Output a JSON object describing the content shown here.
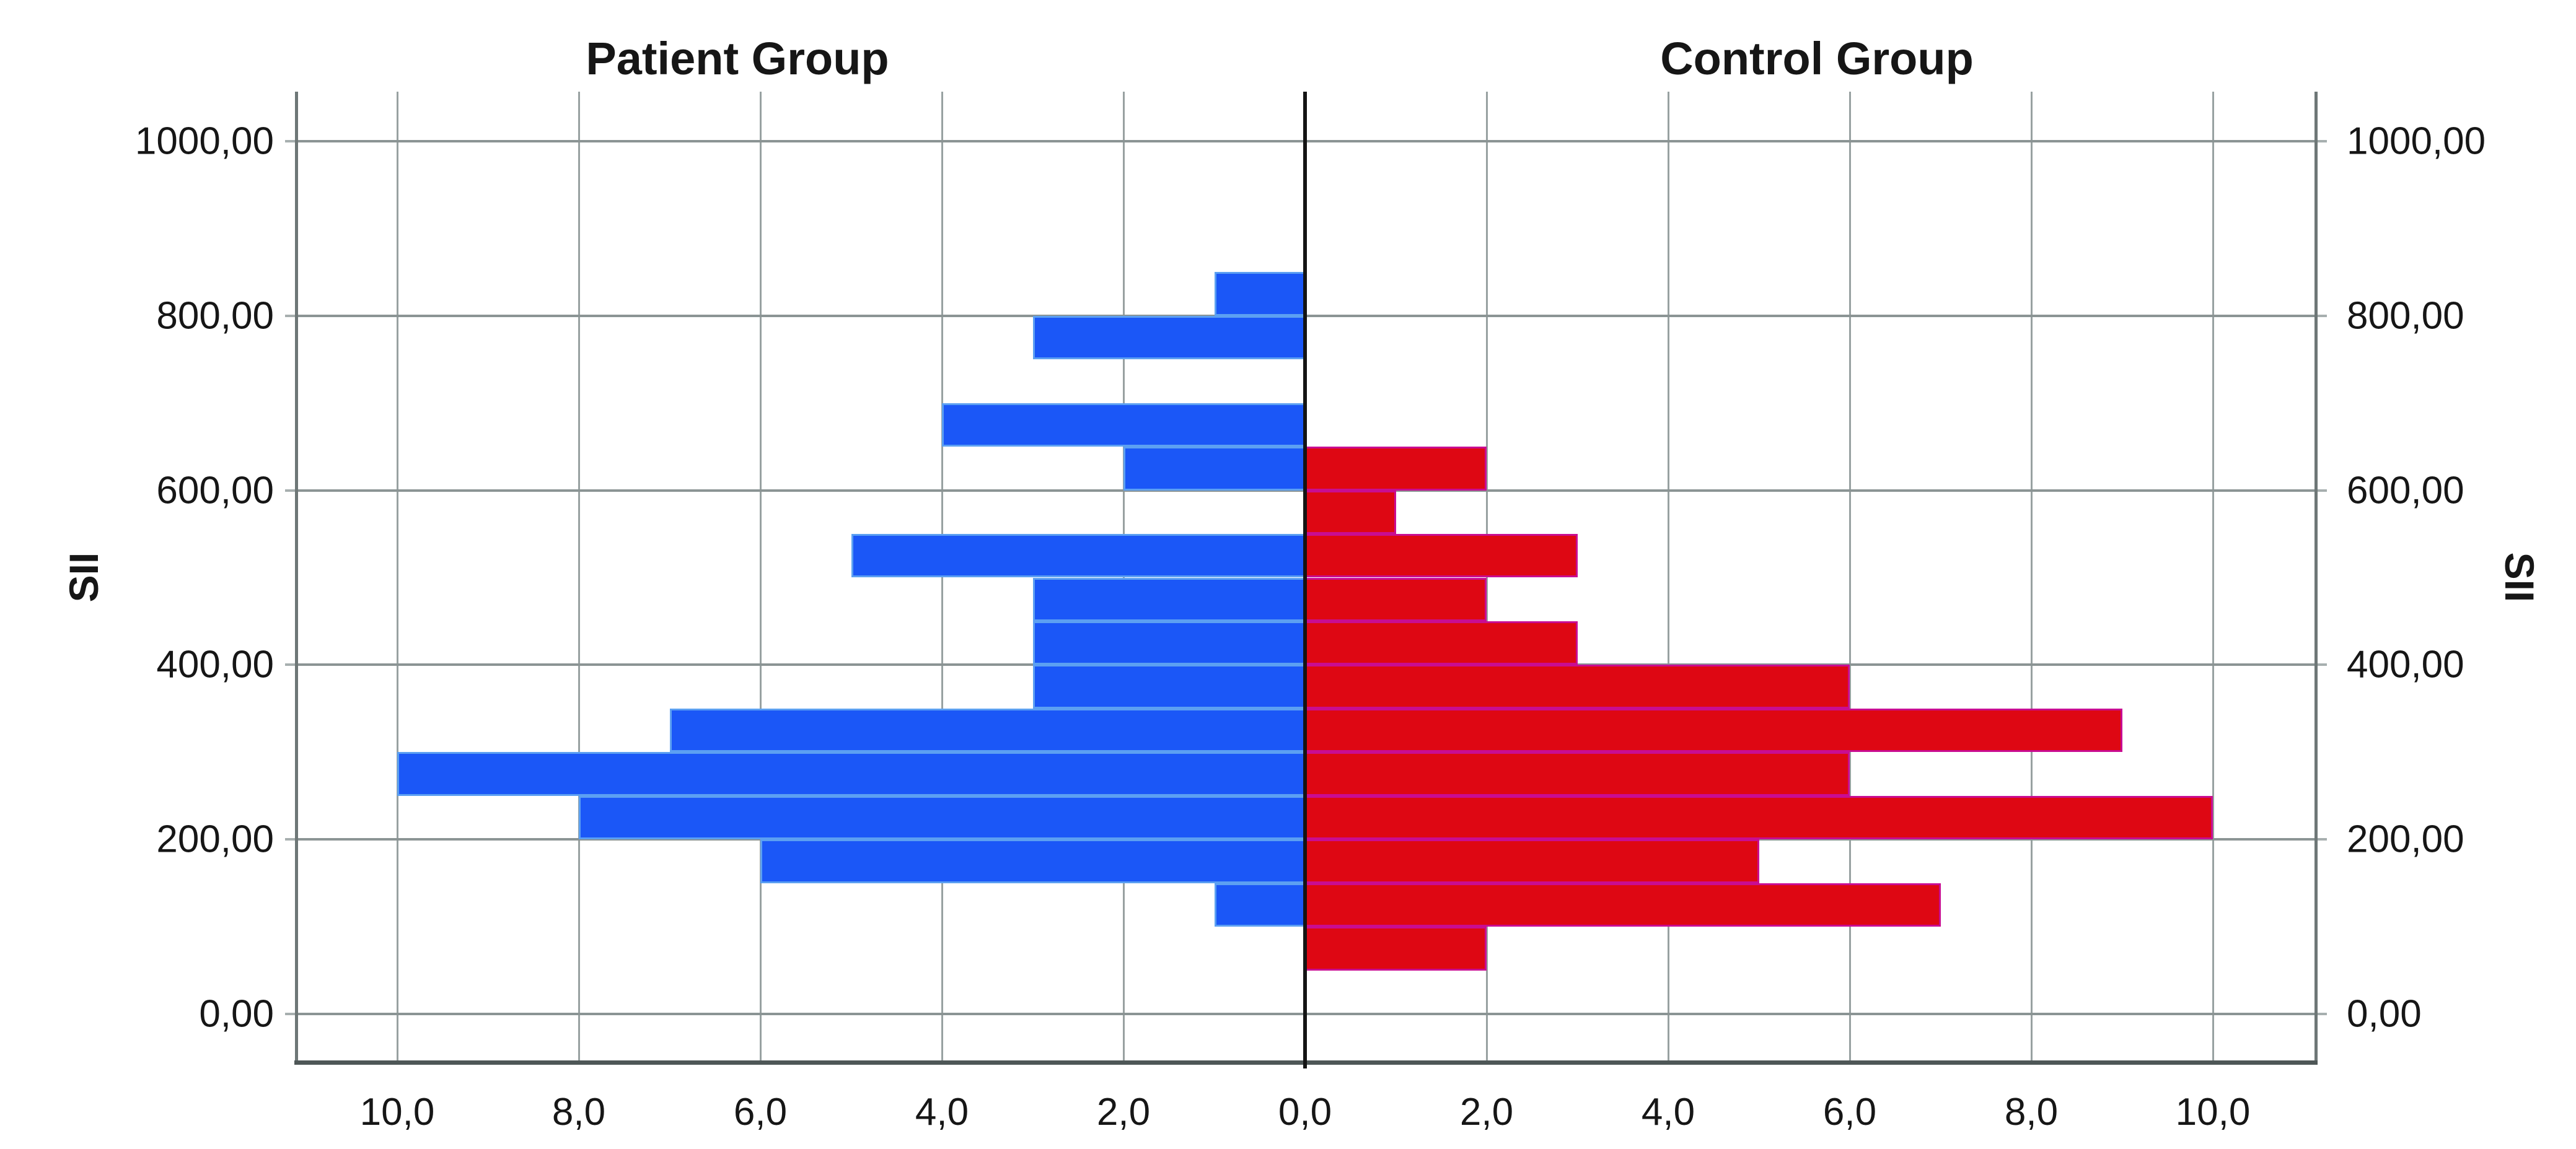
{
  "titles": {
    "left": "Patient Group",
    "right": "Control Group"
  },
  "axes": {
    "y_label_left": "SII",
    "y_label_right": "SII",
    "y_ticks": [
      {
        "value": 0,
        "label": "0,00"
      },
      {
        "value": 200,
        "label": "200,00"
      },
      {
        "value": 400,
        "label": "400,00"
      },
      {
        "value": 600,
        "label": "600,00"
      },
      {
        "value": 800,
        "label": "800,00"
      },
      {
        "value": 1000,
        "label": "1000,00"
      }
    ],
    "x_ticks_side": [
      {
        "value": 2,
        "label": "2,0"
      },
      {
        "value": 4,
        "label": "4,0"
      },
      {
        "value": 6,
        "label": "6,0"
      },
      {
        "value": 8,
        "label": "8,0"
      },
      {
        "value": 10,
        "label": "10,0"
      }
    ],
    "x_center_tick": "0,0"
  },
  "colors": {
    "patient_fill": "#1B57F7",
    "patient_border": "#5CA0F2",
    "control_fill": "#DE0713",
    "control_border": "#C90D92",
    "grid_vertical": "#98A1A1",
    "grid_horizontal": "#8B9494",
    "frame_side": "#6E7777",
    "frame_bottom": "#4E5757",
    "center_axis": "#141414",
    "text": "#161616"
  },
  "chart_data": {
    "type": "bar",
    "variant": "back-to-back-histogram-pyramid",
    "title_left": "Patient Group",
    "title_right": "Control Group",
    "ylabel": "SII",
    "bin_width": 50,
    "y_axis": {
      "min": 0,
      "max": 1000,
      "tick_step": 200,
      "grid": true
    },
    "x_axis": {
      "min": 0,
      "max_each_side": 11.15,
      "tick_step": 2,
      "ticks_labeled": [
        0,
        2,
        4,
        6,
        8,
        10
      ],
      "grid": true
    },
    "series": [
      {
        "name": "Patient Group",
        "side": "left",
        "color": "#1B57F7",
        "border_color": "#5CA0F2",
        "bins": [
          {
            "from": 100,
            "to": 150,
            "count": 1
          },
          {
            "from": 150,
            "to": 200,
            "count": 6
          },
          {
            "from": 200,
            "to": 250,
            "count": 8
          },
          {
            "from": 250,
            "to": 300,
            "count": 10
          },
          {
            "from": 300,
            "to": 350,
            "count": 7
          },
          {
            "from": 350,
            "to": 400,
            "count": 3
          },
          {
            "from": 400,
            "to": 450,
            "count": 3
          },
          {
            "from": 450,
            "to": 500,
            "count": 3
          },
          {
            "from": 500,
            "to": 550,
            "count": 5
          },
          {
            "from": 600,
            "to": 650,
            "count": 2
          },
          {
            "from": 650,
            "to": 700,
            "count": 4
          },
          {
            "from": 750,
            "to": 800,
            "count": 3
          },
          {
            "from": 800,
            "to": 850,
            "count": 1
          }
        ]
      },
      {
        "name": "Control Group",
        "side": "right",
        "color": "#DE0713",
        "border_color": "#C90D92",
        "bins": [
          {
            "from": 50,
            "to": 100,
            "count": 2
          },
          {
            "from": 100,
            "to": 150,
            "count": 7
          },
          {
            "from": 150,
            "to": 200,
            "count": 5
          },
          {
            "from": 200,
            "to": 250,
            "count": 10
          },
          {
            "from": 250,
            "to": 300,
            "count": 6
          },
          {
            "from": 300,
            "to": 350,
            "count": 9
          },
          {
            "from": 350,
            "to": 400,
            "count": 6
          },
          {
            "from": 400,
            "to": 450,
            "count": 3
          },
          {
            "from": 450,
            "to": 500,
            "count": 2
          },
          {
            "from": 500,
            "to": 550,
            "count": 3
          },
          {
            "from": 550,
            "to": 600,
            "count": 1
          },
          {
            "from": 600,
            "to": 650,
            "count": 2
          }
        ]
      }
    ]
  }
}
